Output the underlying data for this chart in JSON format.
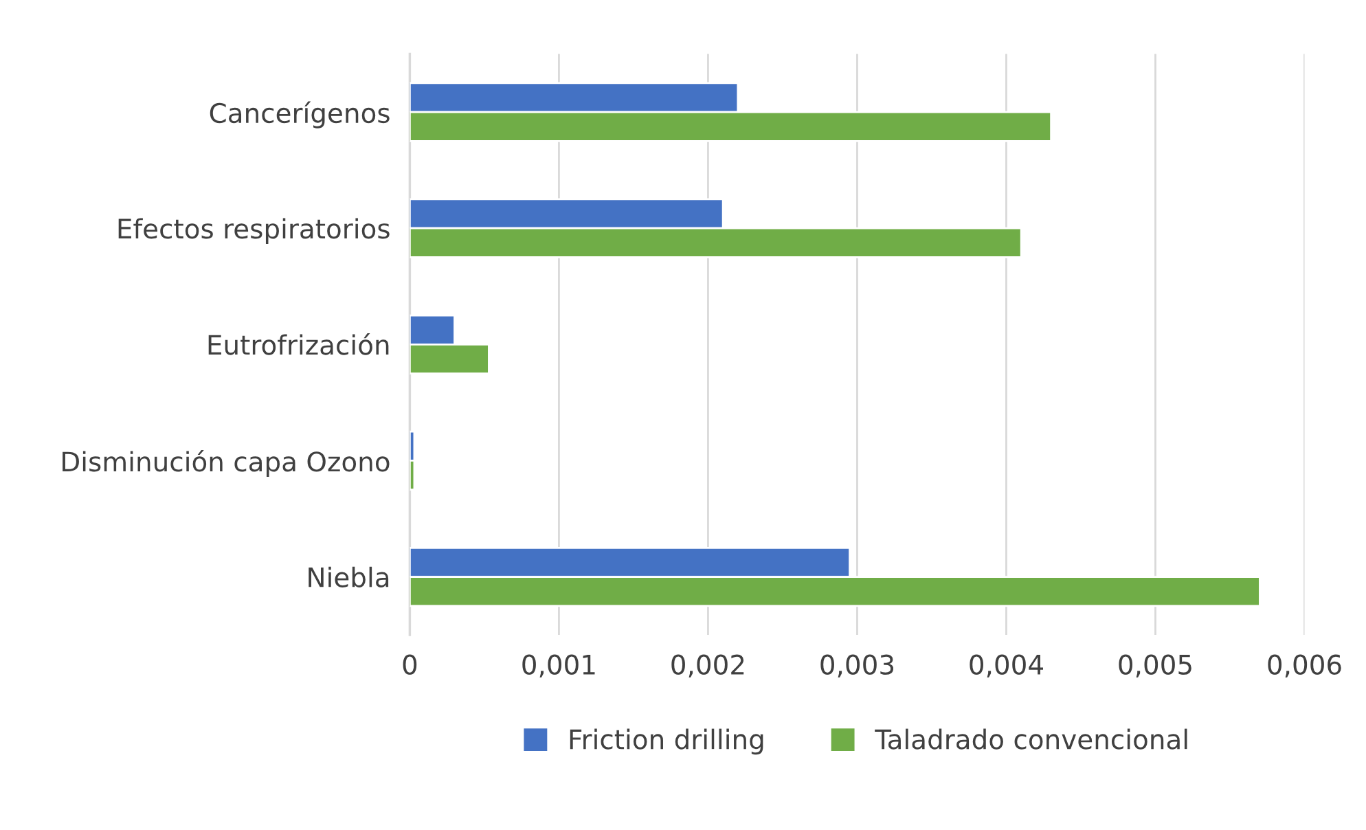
{
  "chart_data": {
    "type": "bar",
    "orientation": "horizontal",
    "categories": [
      "Cancerígenos",
      "Efectos respiratorios",
      "Eutrofrización",
      "Disminución capa Ozono",
      "Niebla"
    ],
    "series": [
      {
        "name": "Friction drilling",
        "color": "#4472c4",
        "values": [
          0.0022,
          0.0021,
          0.0003,
          3e-05,
          0.00295
        ]
      },
      {
        "name": "Taladrado convencional",
        "color": "#70ad47",
        "values": [
          0.0043,
          0.0041,
          0.00053,
          3e-05,
          0.0057
        ]
      }
    ],
    "xlim": [
      0,
      0.006
    ],
    "xticks": [
      0,
      {
        "value": 0.001,
        "label": "0,001"
      },
      {
        "value": 0.002,
        "label": "0,002"
      },
      {
        "value": 0.003,
        "label": "0,003"
      },
      {
        "value": 0.004,
        "label": "0,004"
      },
      {
        "value": 0.005,
        "label": "0,005"
      },
      {
        "value": 0.006,
        "label": "0,006"
      }
    ],
    "grid": "x",
    "legend": "bottom"
  }
}
